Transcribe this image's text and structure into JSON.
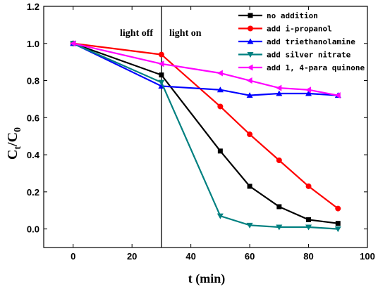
{
  "chart_data": {
    "type": "line",
    "xlabel": "t (min)",
    "ylabel_main": "C",
    "ylabel_sub1": "t",
    "ylabel_sep": "/C",
    "ylabel_sub2": "0",
    "xlim": [
      -10,
      100
    ],
    "ylim": [
      -0.1,
      1.2
    ],
    "xticks": [
      0,
      20,
      40,
      60,
      80,
      100
    ],
    "yticks": [
      0.0,
      0.2,
      0.4,
      0.6,
      0.8,
      1.0,
      1.2
    ],
    "xtick_labels": [
      "0",
      "20",
      "40",
      "60",
      "80",
      "100"
    ],
    "ytick_labels": [
      "0.0",
      "0.2",
      "0.4",
      "0.6",
      "0.8",
      "1.0",
      "1.2"
    ],
    "grid": false,
    "legend_position": "top-right",
    "vline_x": 30,
    "annotations": {
      "left": "light off",
      "right": "light on"
    },
    "series": [
      {
        "name": "no addition",
        "color": "#000000",
        "marker": "square",
        "x": [
          0,
          30,
          50,
          60,
          70,
          80,
          90
        ],
        "y": [
          1.0,
          0.83,
          0.42,
          0.23,
          0.12,
          0.05,
          0.03
        ]
      },
      {
        "name": "add i-propanol",
        "color": "#ff0000",
        "marker": "circle",
        "x": [
          0,
          30,
          50,
          60,
          70,
          80,
          90
        ],
        "y": [
          1.0,
          0.94,
          0.66,
          0.51,
          0.37,
          0.23,
          0.11
        ]
      },
      {
        "name": "add triethanolamine",
        "color": "#0000ff",
        "marker": "triangle-up",
        "x": [
          0,
          30,
          50,
          60,
          70,
          80,
          90
        ],
        "y": [
          1.0,
          0.77,
          0.75,
          0.72,
          0.73,
          0.73,
          0.72
        ]
      },
      {
        "name": "add silver nitrate",
        "color": "#008080",
        "marker": "triangle-down",
        "x": [
          0,
          30,
          50,
          60,
          70,
          80,
          90
        ],
        "y": [
          1.0,
          0.79,
          0.07,
          0.02,
          0.01,
          0.01,
          0.0
        ]
      },
      {
        "name": "add 1, 4-para quinone",
        "color": "#ff00ff",
        "marker": "triangle-left",
        "x": [
          0,
          30,
          50,
          60,
          70,
          80,
          90
        ],
        "y": [
          1.0,
          0.89,
          0.84,
          0.8,
          0.76,
          0.75,
          0.72
        ]
      }
    ]
  }
}
